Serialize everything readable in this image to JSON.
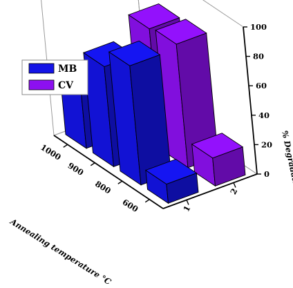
{
  "chart_data": {
    "type": "bar",
    "view": "3d",
    "x_categories": [
      "1000",
      "900",
      "800",
      "600"
    ],
    "z_categories": [
      "1",
      "2"
    ],
    "series": [
      {
        "name": "MB",
        "z": "1",
        "color": "#1414e6",
        "values": [
          39,
          68,
          81,
          13
        ]
      },
      {
        "name": "CV",
        "z": "2",
        "color": "#8c10f0",
        "values": [
          35,
          82,
          84,
          19
        ]
      }
    ],
    "xlabel": "Annealing temperature °C",
    "ylabel": "% Degradation",
    "ylim": [
      0,
      100
    ],
    "yticks": [
      0,
      20,
      40,
      60,
      80,
      100
    ],
    "legend": {
      "placement": "top-left"
    },
    "grid": false
  }
}
